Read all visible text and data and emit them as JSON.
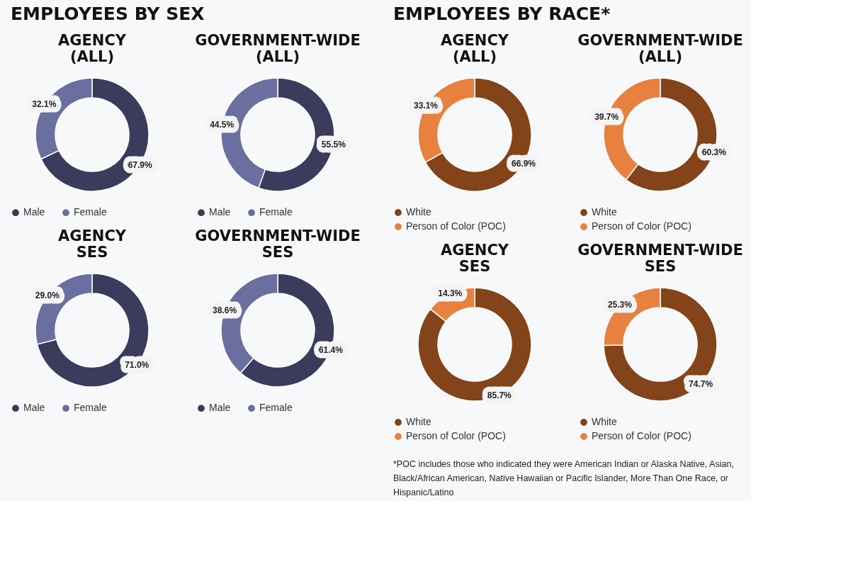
{
  "chart_data": [
    {
      "type": "donut",
      "title": "AGENCY\n(ALL)",
      "annotations": [
        "EMPLOYEES BY SEX"
      ],
      "categories": [
        "Male",
        "Female"
      ],
      "values": [
        67.9,
        32.1
      ],
      "colors": [
        "#3b3b5c",
        "#6a6fa0"
      ],
      "value_labels": [
        "67.9%",
        "32.1%"
      ],
      "legend": "bottom"
    },
    {
      "type": "donut",
      "title": "GOVERNMENT-WIDE\n(ALL)",
      "categories": [
        "Male",
        "Female"
      ],
      "values": [
        55.5,
        44.5
      ],
      "colors": [
        "#3b3b5c",
        "#6a6fa0"
      ],
      "value_labels": [
        "55.5%",
        "44.5%"
      ],
      "legend": "bottom"
    },
    {
      "type": "donut",
      "title": "AGENCY\n(ALL)",
      "annotations": [
        "EMPLOYEES BY RACE*"
      ],
      "categories": [
        "White",
        "Person of Color (POC)"
      ],
      "values": [
        66.9,
        33.1
      ],
      "colors": [
        "#834419",
        "#e8813f"
      ],
      "value_labels": [
        "66.9%",
        "33.1%"
      ],
      "legend": "bottom"
    },
    {
      "type": "donut",
      "title": "GOVERNMENT-WIDE\n(ALL)",
      "categories": [
        "White",
        "Person of Color (POC)"
      ],
      "values": [
        60.3,
        39.7
      ],
      "colors": [
        "#834419",
        "#e8813f"
      ],
      "value_labels": [
        "60.3%",
        "39.7%"
      ],
      "legend": "bottom"
    },
    {
      "type": "donut",
      "title": "AGENCY\nSES",
      "categories": [
        "Male",
        "Female"
      ],
      "values": [
        71.0,
        29.0
      ],
      "colors": [
        "#3b3b5c",
        "#6a6fa0"
      ],
      "value_labels": [
        "71.0%",
        "29.0%"
      ],
      "legend": "bottom"
    },
    {
      "type": "donut",
      "title": "GOVERNMENT-WIDE\nSES",
      "categories": [
        "Male",
        "Female"
      ],
      "values": [
        61.4,
        38.6
      ],
      "colors": [
        "#3b3b5c",
        "#6a6fa0"
      ],
      "value_labels": [
        "61.4%",
        "38.6%"
      ],
      "legend": "bottom"
    },
    {
      "type": "donut",
      "title": "AGENCY\nSES",
      "categories": [
        "White",
        "Person of Color (POC)"
      ],
      "values": [
        85.7,
        14.3
      ],
      "colors": [
        "#834419",
        "#e8813f"
      ],
      "value_labels": [
        "85.7%",
        "14.3%"
      ],
      "legend": "bottom"
    },
    {
      "type": "donut",
      "title": "GOVERNMENT-WIDE\nSES",
      "annotations": [
        "*POC includes those who indicated they were American Indian or Alaska Native, Asian, Black/African American, Native Hawaiian or Pacific Islander, More Than One Race, or Hispanic/Latino"
      ],
      "categories": [
        "White",
        "Person of Color (POC)"
      ],
      "values": [
        74.7,
        25.3
      ],
      "colors": [
        "#834419",
        "#e8813f"
      ],
      "value_labels": [
        "74.7%",
        "25.3%"
      ],
      "legend": "bottom"
    }
  ]
}
